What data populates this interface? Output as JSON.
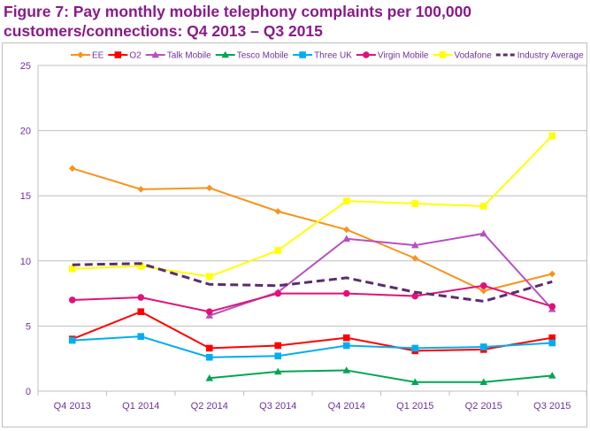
{
  "chart_data": {
    "type": "line",
    "title": "Figure 7: Pay monthly mobile telephony complaints per 100,000 customers/connections: Q4 2013 – Q3 2015",
    "categories": [
      "Q4 2013",
      "Q1 2014",
      "Q2 2014",
      "Q3 2014",
      "Q4 2014",
      "Q1 2015",
      "Q2 2015",
      "Q3 2015"
    ],
    "ylim": [
      0,
      25
    ],
    "yticks": [
      0,
      5,
      10,
      15,
      20,
      25
    ],
    "grid": true,
    "legend": "top",
    "series": [
      {
        "name": "EE",
        "color": "#f7941d",
        "marker": "diamond",
        "values": [
          17.1,
          15.5,
          15.6,
          13.8,
          12.4,
          10.2,
          7.7,
          9.0
        ]
      },
      {
        "name": "O2",
        "color": "#ff0000",
        "marker": "square",
        "values": [
          4.0,
          6.1,
          3.3,
          3.5,
          4.1,
          3.1,
          3.2,
          4.1
        ]
      },
      {
        "name": "Talk Mobile",
        "color": "#b84fc0",
        "marker": "triangle",
        "values": [
          null,
          null,
          5.8,
          7.6,
          11.7,
          11.2,
          12.1,
          6.3
        ]
      },
      {
        "name": "Tesco Mobile",
        "color": "#00a651",
        "marker": "triangle",
        "values": [
          null,
          null,
          1.0,
          1.5,
          1.6,
          0.7,
          0.7,
          1.2
        ]
      },
      {
        "name": "Three UK",
        "color": "#00aeef",
        "marker": "square",
        "values": [
          3.9,
          4.2,
          2.6,
          2.7,
          3.5,
          3.3,
          3.4,
          3.7
        ]
      },
      {
        "name": "Virgin Mobile",
        "color": "#e0127a",
        "marker": "circle",
        "values": [
          7.0,
          7.2,
          6.1,
          7.5,
          7.5,
          7.3,
          8.1,
          6.5
        ]
      },
      {
        "name": "Vodafone",
        "color": "#ffff00",
        "marker": "square",
        "values": [
          9.4,
          9.6,
          8.8,
          10.8,
          14.6,
          14.4,
          14.2,
          19.6
        ]
      },
      {
        "name": "Industry Average",
        "color": "#5b2c6f",
        "marker": "none",
        "dashed": true,
        "values": [
          9.7,
          9.8,
          8.2,
          8.1,
          8.7,
          7.6,
          6.9,
          8.4
        ]
      }
    ]
  }
}
